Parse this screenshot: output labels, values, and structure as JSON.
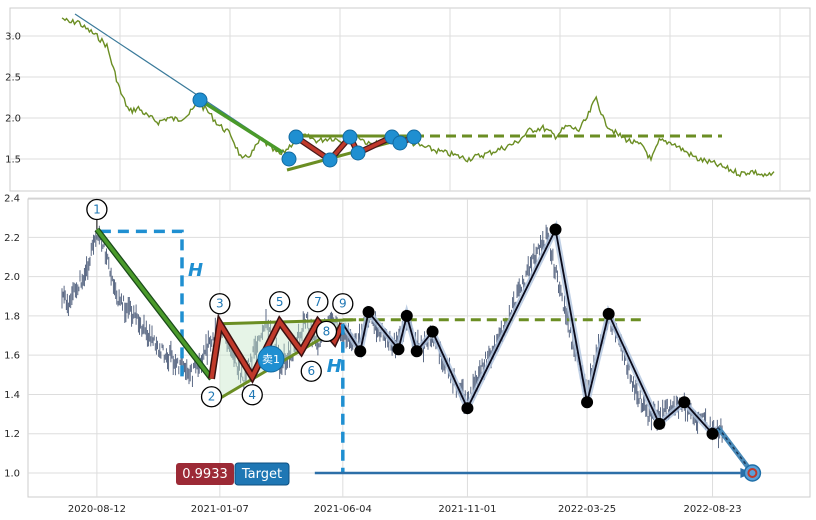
{
  "chart_data": [
    {
      "type": "line",
      "panel": "top",
      "title": "",
      "xlabel": "",
      "ylabel": "",
      "ylim": [
        1.2,
        3.3
      ],
      "y_ticks": [
        "1.5",
        "2.0",
        "2.5",
        "3.0"
      ],
      "y_tick_values": [
        1.5,
        2.0,
        2.5,
        3.0
      ],
      "grid": true,
      "series": [
        {
          "key": "close",
          "color": "#6b8e23",
          "points": [
            [
              "2020-07-01",
              3.22
            ],
            [
              "2020-07-10",
              3.16
            ],
            [
              "2020-07-20",
              3.18
            ],
            [
              "2020-07-28",
              3.1
            ],
            [
              "2020-08-05",
              3.05
            ],
            [
              "2020-08-14",
              2.98
            ],
            [
              "2020-08-24",
              2.88
            ],
            [
              "2020-09-01",
              2.6
            ],
            [
              "2020-09-10",
              2.3
            ],
            [
              "2020-09-20",
              2.08
            ],
            [
              "2020-10-01",
              2.12
            ],
            [
              "2020-10-12",
              2.02
            ],
            [
              "2020-10-25",
              1.95
            ],
            [
              "2020-11-05",
              2.0
            ],
            [
              "2020-11-18",
              1.98
            ],
            [
              "2020-12-01",
              2.05
            ],
            [
              "2020-12-12",
              2.18
            ],
            [
              "2020-12-22",
              2.1
            ],
            [
              "2021-01-05",
              1.92
            ],
            [
              "2021-01-20",
              1.8
            ],
            [
              "2021-02-03",
              1.48
            ],
            [
              "2021-02-15",
              1.58
            ],
            [
              "2021-02-26",
              1.75
            ],
            [
              "2021-03-10",
              1.62
            ],
            [
              "2021-03-22",
              1.55
            ],
            [
              "2021-04-05",
              1.7
            ],
            [
              "2021-04-20",
              1.78
            ],
            [
              "2021-05-05",
              1.72
            ],
            [
              "2021-05-20",
              1.76
            ],
            [
              "2021-06-05",
              1.72
            ],
            [
              "2021-06-20",
              1.8
            ],
            [
              "2021-07-05",
              1.68
            ],
            [
              "2021-07-20",
              1.7
            ],
            [
              "2021-08-05",
              1.78
            ],
            [
              "2021-08-20",
              1.72
            ],
            [
              "2021-09-05",
              1.66
            ],
            [
              "2021-09-25",
              1.6
            ],
            [
              "2021-10-15",
              1.55
            ],
            [
              "2021-11-01",
              1.5
            ],
            [
              "2021-11-20",
              1.55
            ],
            [
              "2021-12-10",
              1.62
            ],
            [
              "2021-12-30",
              1.7
            ],
            [
              "2022-01-15",
              1.85
            ],
            [
              "2022-01-31",
              1.88
            ],
            [
              "2022-02-15",
              1.78
            ],
            [
              "2022-03-01",
              1.9
            ],
            [
              "2022-03-15",
              1.85
            ],
            [
              "2022-03-25",
              2.0
            ],
            [
              "2022-04-05",
              2.25
            ],
            [
              "2022-04-15",
              1.95
            ],
            [
              "2022-04-30",
              1.8
            ],
            [
              "2022-05-15",
              1.72
            ],
            [
              "2022-06-01",
              1.65
            ],
            [
              "2022-06-10",
              1.48
            ],
            [
              "2022-06-20",
              1.72
            ],
            [
              "2022-07-05",
              1.7
            ],
            [
              "2022-07-20",
              1.6
            ],
            [
              "2022-08-05",
              1.5
            ],
            [
              "2022-08-23",
              1.45
            ],
            [
              "2022-09-10",
              1.38
            ],
            [
              "2022-09-25",
              1.32
            ],
            [
              "2022-10-10",
              1.35
            ],
            [
              "2022-10-25",
              1.29
            ],
            [
              "2022-11-05",
              1.31
            ]
          ]
        }
      ]
    },
    {
      "type": "line",
      "panel": "bottom",
      "title": "",
      "xlabel": "",
      "ylabel": "",
      "ylim": [
        0.95,
        2.4
      ],
      "y_ticks": [
        "1.0",
        "1.2",
        "1.4",
        "1.6",
        "1.8",
        "2.0",
        "2.2",
        "2.4"
      ],
      "y_tick_values": [
        1.0,
        1.2,
        1.4,
        1.6,
        1.8,
        2.0,
        2.2,
        2.4
      ],
      "x_ticks": [
        "2020-08-12",
        "2021-01-07",
        "2021-06-04",
        "2021-11-01",
        "2022-03-25",
        "2022-08-23"
      ],
      "grid": true,
      "series": [
        {
          "key": "price",
          "color": "#4a5a78",
          "points": [
            [
              "2020-07-01",
              1.9
            ],
            [
              "2020-07-10",
              1.86
            ],
            [
              "2020-07-20",
              1.95
            ],
            [
              "2020-08-01",
              2.05
            ],
            [
              "2020-08-12",
              2.23
            ],
            [
              "2020-08-25",
              2.1
            ],
            [
              "2020-09-05",
              1.9
            ],
            [
              "2020-09-20",
              1.82
            ],
            [
              "2020-10-05",
              1.75
            ],
            [
              "2020-10-20",
              1.66
            ],
            [
              "2020-11-05",
              1.6
            ],
            [
              "2020-11-20",
              1.55
            ],
            [
              "2020-12-05",
              1.5
            ],
            [
              "2020-12-20",
              1.62
            ],
            [
              "2021-01-07",
              1.75
            ],
            [
              "2021-01-20",
              1.62
            ],
            [
              "2021-02-05",
              1.48
            ],
            [
              "2021-02-20",
              1.65
            ],
            [
              "2021-03-05",
              1.78
            ],
            [
              "2021-03-20",
              1.55
            ],
            [
              "2021-04-05",
              1.62
            ],
            [
              "2021-04-20",
              1.78
            ],
            [
              "2021-05-05",
              1.66
            ],
            [
              "2021-05-20",
              1.78
            ],
            [
              "2021-06-04",
              1.72
            ],
            [
              "2021-06-20",
              1.65
            ],
            [
              "2021-07-05",
              1.8
            ],
            [
              "2021-07-20",
              1.72
            ],
            [
              "2021-08-05",
              1.65
            ],
            [
              "2021-08-20",
              1.78
            ],
            [
              "2021-09-05",
              1.62
            ],
            [
              "2021-09-20",
              1.7
            ],
            [
              "2021-10-05",
              1.55
            ],
            [
              "2021-10-20",
              1.45
            ],
            [
              "2021-11-01",
              1.35
            ],
            [
              "2021-11-20",
              1.55
            ],
            [
              "2021-12-05",
              1.65
            ],
            [
              "2021-12-20",
              1.78
            ],
            [
              "2022-01-05",
              1.95
            ],
            [
              "2022-01-20",
              2.1
            ],
            [
              "2022-02-05",
              2.2
            ],
            [
              "2022-02-20",
              1.95
            ],
            [
              "2022-03-05",
              1.7
            ],
            [
              "2022-03-25",
              1.4
            ],
            [
              "2022-04-05",
              1.6
            ],
            [
              "2022-04-20",
              1.8
            ],
            [
              "2022-05-05",
              1.65
            ],
            [
              "2022-05-20",
              1.45
            ],
            [
              "2022-06-05",
              1.3
            ],
            [
              "2022-06-20",
              1.28
            ],
            [
              "2022-07-05",
              1.35
            ],
            [
              "2022-07-20",
              1.34
            ],
            [
              "2022-08-05",
              1.28
            ],
            [
              "2022-08-23",
              1.23
            ],
            [
              "2022-09-05",
              1.2
            ]
          ]
        }
      ],
      "pattern": {
        "labels": [
          "1",
          "2",
          "3",
          "4",
          "5",
          "6",
          "7",
          "8",
          "9"
        ],
        "points": [
          [
            "2020-08-12",
            2.24
          ],
          [
            "2020-12-28",
            1.48
          ],
          [
            "2021-01-07",
            1.76
          ],
          [
            "2021-02-15",
            1.49
          ],
          [
            "2021-03-20",
            1.77
          ],
          [
            "2021-04-15",
            1.62
          ],
          [
            "2021-05-05",
            1.77
          ],
          [
            "2021-05-25",
            1.67
          ],
          [
            "2021-06-04",
            1.76
          ]
        ],
        "upper_line": [
          [
            "2021-01-07",
            1.76
          ],
          [
            "2021-06-20",
            1.78
          ]
        ],
        "lower_line": [
          [
            "2021-01-07",
            1.38
          ],
          [
            "2021-06-04",
            1.75
          ]
        ],
        "resistance_dashed": [
          [
            "2021-06-04",
            1.78
          ],
          [
            "2022-06-01",
            1.78
          ]
        ],
        "height_label": "H",
        "signal_label": "卖1",
        "continuation_nodes": [
          [
            "2021-06-04",
            1.76
          ],
          [
            "2021-06-25",
            1.62
          ],
          [
            "2021-07-05",
            1.82
          ],
          [
            "2021-08-10",
            1.63
          ],
          [
            "2021-08-20",
            1.8
          ],
          [
            "2021-09-01",
            1.62
          ],
          [
            "2021-09-20",
            1.72
          ],
          [
            "2021-11-01",
            1.33
          ],
          [
            "2022-02-15",
            2.24
          ],
          [
            "2022-03-25",
            1.36
          ],
          [
            "2022-04-20",
            1.81
          ],
          [
            "2022-06-20",
            1.25
          ],
          [
            "2022-07-20",
            1.36
          ],
          [
            "2022-08-23",
            1.2
          ],
          [
            "2022-08-30",
            1.23
          ]
        ],
        "target_point": [
          "2022-10-10",
          1.0
        ],
        "target_arrow": [
          [
            "2021-06-04",
            1.0
          ],
          [
            "2022-10-10",
            1.0
          ]
        ]
      },
      "target": {
        "value": "0.9933",
        "label": "Target"
      }
    }
  ],
  "colors": {
    "close_line": "#6b8e23",
    "pattern_green": "#4a9a2a",
    "pattern_red": "#c0392b",
    "pattern_blue": "#1f8fd1",
    "node_black": "#000000",
    "target_box": "#9c2a36",
    "target_label_box": "#1f77b4"
  }
}
